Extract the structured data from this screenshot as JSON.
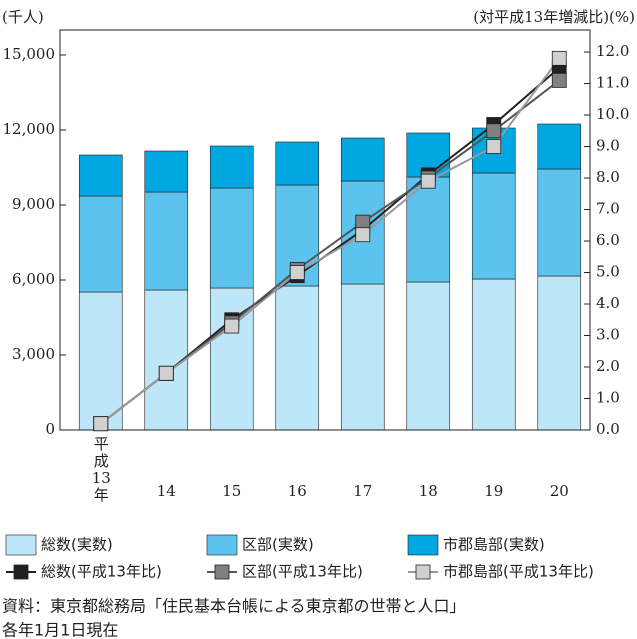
{
  "chart_data": {
    "type": "bar",
    "stacked": true,
    "y_label": "(千人)",
    "y2_label": "(対平成13年増減比)(%)",
    "categories": [
      "平成13年",
      "14",
      "15",
      "16",
      "17",
      "18",
      "19",
      "20"
    ],
    "ylim": [
      0,
      16000
    ],
    "yticks": [
      0,
      {
        "value": 3000,
        "label": "3,000"
      },
      {
        "value": 6000,
        "label": "6,000"
      },
      {
        "value": 9000,
        "label": "9,000"
      },
      {
        "value": 12000,
        "label": "12,000"
      },
      {
        "value": 15000,
        "label": "15,000"
      }
    ],
    "y2lim": [
      0,
      12.7
    ],
    "y2ticks": [
      {
        "value": 0,
        "label": "0.0"
      },
      {
        "value": 1,
        "label": "1.0"
      },
      {
        "value": 2,
        "label": "2.0"
      },
      {
        "value": 3,
        "label": "3.0"
      },
      {
        "value": 4,
        "label": "4.0"
      },
      {
        "value": 5,
        "label": "5.0"
      },
      {
        "value": 6,
        "label": "6.0"
      },
      {
        "value": 7,
        "label": "7.0"
      },
      {
        "value": 8,
        "label": "8.0"
      },
      {
        "value": 9,
        "label": "9.0"
      },
      {
        "value": 10,
        "label": "10.0"
      },
      {
        "value": 11,
        "label": "11.0"
      },
      {
        "value": 12,
        "label": "12.0"
      }
    ],
    "series": [
      {
        "name": "総数(実数)",
        "color": "#bde6f8",
        "values": [
          5520,
          5600,
          5680,
          5760,
          5840,
          5920,
          6040,
          6160
        ]
      },
      {
        "name": "区部(実数)",
        "color": "#5bc3ee",
        "values": [
          3840,
          3920,
          4000,
          4040,
          4120,
          4200,
          4240,
          4280
        ]
      },
      {
        "name": "市郡島部(実数)",
        "color": "#00a7e1",
        "values": [
          1640,
          1640,
          1680,
          1720,
          1720,
          1760,
          1800,
          1800
        ]
      },
      {
        "name": "総数(平成13年比)",
        "type": "line",
        "axis": "y2",
        "color": "#231f20",
        "marker_color": "#231f20",
        "values": [
          0.2,
          1.8,
          3.5,
          4.9,
          6.35,
          8.1,
          9.7,
          11.5
        ]
      },
      {
        "name": "区部(平成13年比)",
        "type": "line",
        "axis": "y2",
        "color": "#555555",
        "marker_color": "#808080",
        "values": [
          0.2,
          1.8,
          3.4,
          5.1,
          6.6,
          8.0,
          9.5,
          11.1
        ]
      },
      {
        "name": "市郡島部(平成13年比)",
        "type": "line",
        "axis": "y2",
        "color": "#999999",
        "marker_color": "#d0d0d0",
        "values": [
          0.2,
          1.8,
          3.3,
          5.0,
          6.2,
          7.9,
          9.0,
          11.8
        ]
      }
    ],
    "notes": [
      "資料：東京都総務局「住民基本台帳による東京都の世帯と人口」",
      "各年1月1日現在"
    ]
  }
}
